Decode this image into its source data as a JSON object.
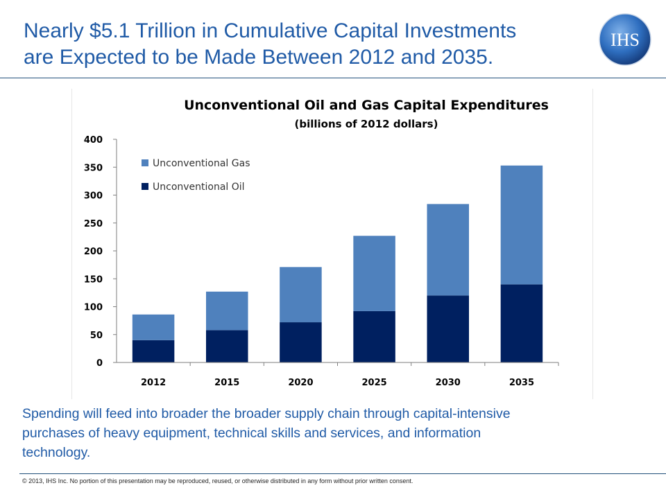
{
  "slide": {
    "title_line1": "Nearly $5.1 Trillion in Cumulative Capital Investments",
    "title_line2": "are Expected to be Made Between 2012 and 2035.",
    "logo_text": "IHS",
    "body_line1": "Spending will feed into broader the broader supply chain through capital-intensive",
    "body_line2": "purchases of heavy equipment, technical skills and services, and information",
    "body_line3": "technology.",
    "footer": "© 2013, IHS Inc. No portion of this presentation may be reproduced, reused, or otherwise distributed in any form without prior written consent."
  },
  "colors": {
    "title_blue": "#1f5aa6",
    "gas": "#4f81bd",
    "oil": "#002060"
  },
  "chart_data": {
    "type": "bar",
    "stacked": true,
    "title": "Unconventional Oil and Gas Capital Expenditures",
    "subtitle": "(billions of 2012 dollars)",
    "categories": [
      "2012",
      "2015",
      "2020",
      "2025",
      "2030",
      "2035"
    ],
    "series": [
      {
        "name": "Unconventional Oil",
        "values": [
          40,
          58,
          72,
          92,
          120,
          140
        ]
      },
      {
        "name": "Unconventional Gas",
        "values": [
          46,
          69,
          99,
          135,
          164,
          213
        ]
      }
    ],
    "ylim": [
      0,
      400
    ],
    "yticks": [
      "0",
      "50",
      "100",
      "150",
      "200",
      "250",
      "300",
      "350",
      "400"
    ],
    "legend_order": [
      "Unconventional Gas",
      "Unconventional Oil"
    ],
    "legend_position": "top-left",
    "grid": false
  }
}
